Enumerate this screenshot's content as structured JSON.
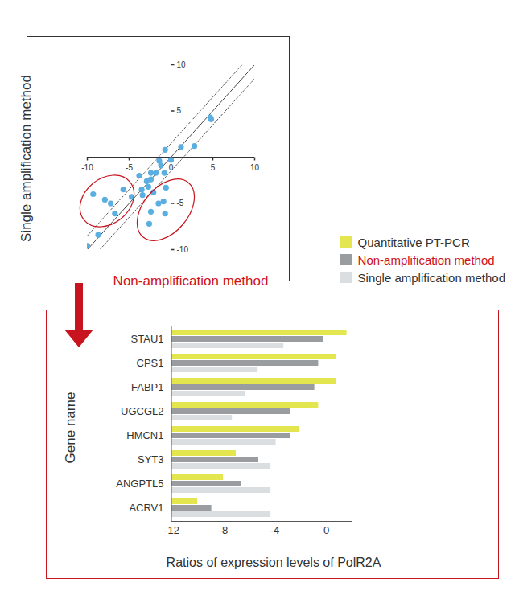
{
  "chart_data": [
    {
      "type": "scatter",
      "x_label": "Non-amplification method",
      "y_label": "Single amplification method",
      "x": [
        -10.0,
        -8.7,
        -9.3,
        -7.9,
        -7.2,
        -6.7,
        -5.7,
        -4.7,
        -3.8,
        -3.5,
        -3.4,
        -2.9,
        -2.7,
        -2.4,
        -2.1,
        -2.4,
        -1.8,
        -1.4,
        -1.2,
        -0.8,
        -0.7,
        0.0,
        -0.6,
        -0.9,
        -0.7,
        -1.5,
        -2.4,
        -2.6,
        1.2,
        2.8,
        4.7,
        4.8
      ],
      "y": [
        -9.6,
        -8.4,
        -4.0,
        -4.6,
        -5.0,
        -6.1,
        -3.5,
        -4.3,
        -2.0,
        -3.5,
        -4.1,
        -2.6,
        -3.2,
        -2.4,
        -3.8,
        -1.7,
        -1.7,
        -0.4,
        -0.9,
        -1.7,
        0.8,
        -0.3,
        -3.3,
        -4.8,
        -6.1,
        -5.0,
        -5.9,
        -7.2,
        1.1,
        1.2,
        4.3,
        4.1
      ],
      "color": "#5aaee0",
      "marker": "circle",
      "xlim": [
        -10,
        10
      ],
      "ylim": [
        -10,
        10
      ],
      "xticks": [
        -10,
        -5,
        0,
        5,
        10
      ],
      "yticks": [
        -10,
        -5,
        5,
        10
      ],
      "diagonal_offsets": [
        -1.5,
        0,
        1.5
      ]
    },
    {
      "type": "bar",
      "orientation": "horizontal",
      "x_label": "Ratios of expression levels of PolR2A",
      "y_label": "Gene name",
      "categories": [
        "STAU1",
        "CPS1",
        "FABP1",
        "UGCGL2",
        "HMCN1",
        "SYT3",
        "ANGPTL5",
        "ACRV1"
      ],
      "series": [
        {
          "name": "Quantitative PT-PCR",
          "color": "#e3e64f",
          "values": [
            1.6,
            0.75,
            0.75,
            -0.6,
            -2.1,
            -7.0,
            -8.0,
            -10.0
          ]
        },
        {
          "name": "Non-amplification method",
          "color": "#9a9da0",
          "values": [
            -0.2,
            -0.6,
            -0.9,
            -2.8,
            -2.8,
            -5.25,
            -6.6,
            -8.9
          ]
        },
        {
          "name": "Single amplification method",
          "color": "#dbdee0",
          "values": [
            -3.3,
            -5.3,
            -6.25,
            -7.3,
            -3.9,
            -4.3,
            -4.3,
            -4.3
          ]
        }
      ],
      "xlim": [
        -12,
        2
      ],
      "xticks": [
        -12,
        -8,
        -4,
        0
      ],
      "legend": "top-right"
    }
  ]
}
